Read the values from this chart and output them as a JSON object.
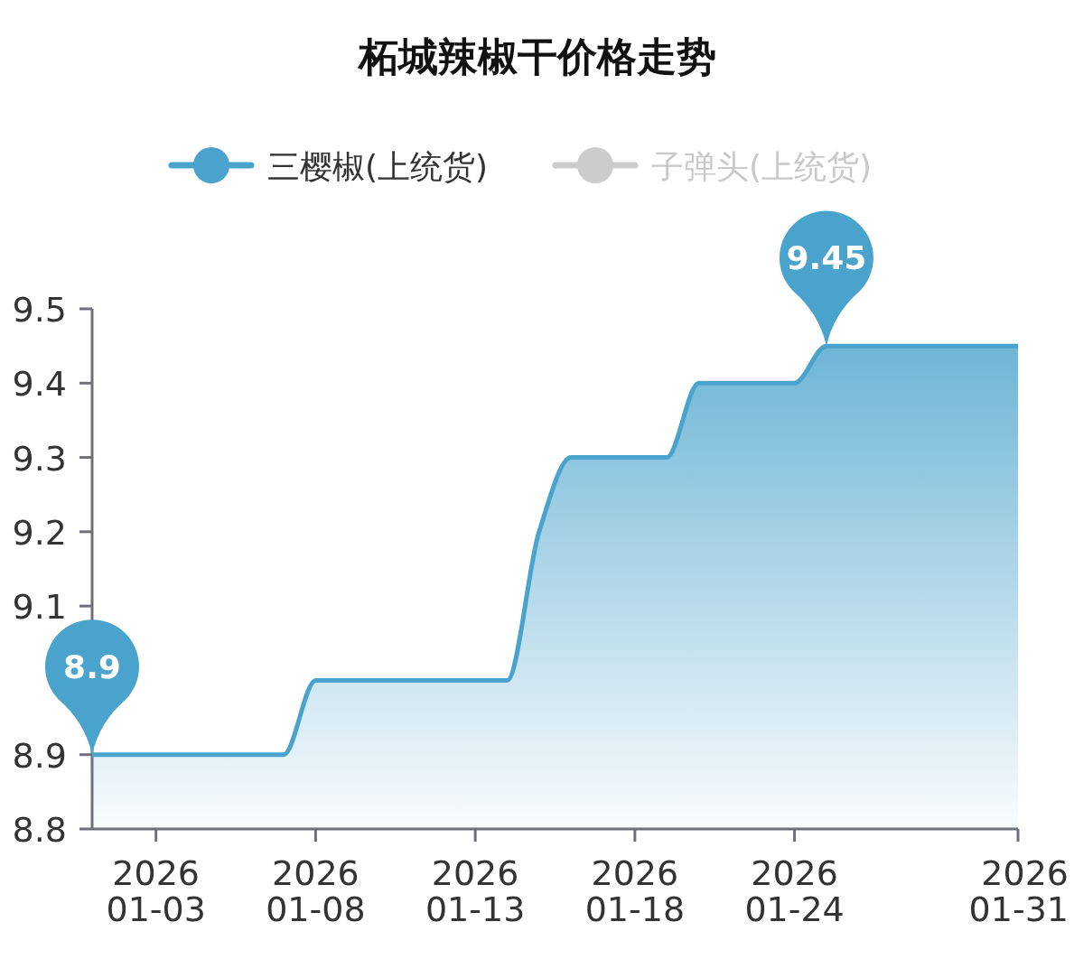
{
  "chart_data": {
    "type": "area",
    "title": "柘城辣椒干价格走势",
    "categories": [
      null,
      null,
      "2026\n01-03",
      null,
      null,
      null,
      null,
      "2026\n01-08",
      null,
      null,
      null,
      null,
      "2026\n01-13",
      null,
      null,
      null,
      null,
      "2026\n01-18",
      null,
      null,
      null,
      null,
      "2026\n01-24",
      null,
      null,
      null,
      null,
      null,
      null,
      "2026\n01-31"
    ],
    "series": [
      {
        "name": "三樱椒(上统货)",
        "color": "#4aa3cc",
        "values": [
          8.9,
          8.9,
          8.9,
          8.9,
          8.9,
          8.9,
          8.9,
          9.0,
          9.0,
          9.0,
          9.0,
          9.0,
          9.0,
          9.0,
          9.2,
          9.3,
          9.3,
          9.3,
          9.3,
          9.4,
          9.4,
          9.4,
          9.4,
          9.45,
          9.45,
          9.45,
          9.45,
          9.45,
          9.45,
          9.45
        ],
        "value_labels": [
          "8.9",
          null,
          null,
          null,
          null,
          null,
          null,
          null,
          null,
          null,
          null,
          null,
          null,
          null,
          null,
          null,
          null,
          null,
          null,
          null,
          null,
          null,
          null,
          "9.45",
          null,
          null,
          null,
          null,
          null,
          null
        ]
      },
      {
        "name": "子弹头(上统货)",
        "color": "#cccccc",
        "values": [
          null,
          null,
          null,
          null,
          null,
          null,
          null,
          null,
          null,
          null,
          null,
          null,
          null,
          null,
          null,
          null,
          null,
          null,
          null,
          null,
          null,
          null,
          null,
          null,
          null,
          null,
          null,
          null,
          null,
          null
        ]
      }
    ],
    "ylim": [
      8.8,
      9.5
    ],
    "yticks": [
      8.8,
      8.9,
      {
        "value": 9,
        "label": null
      },
      9.1,
      9.2,
      9.3,
      9.4,
      9.5
    ],
    "legend": "top",
    "grid": false,
    "marker": "none",
    "line_style": "solid"
  }
}
